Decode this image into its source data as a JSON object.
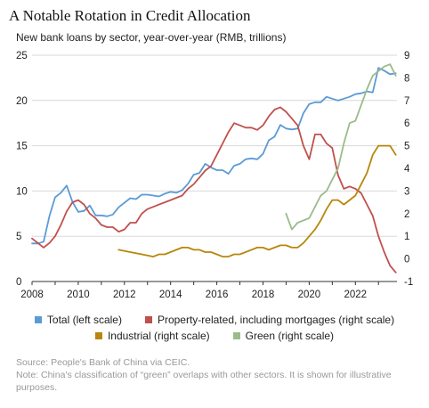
{
  "header": {
    "title": "A Notable Rotation in Credit Allocation",
    "subtitle": "New bank loans by sector, year-over-year (RMB, trillions)"
  },
  "footer": {
    "source": "Source: People's Bank of China via CEIC.",
    "note": "Note: China's classification of “green” overlaps with other sectors. It is shown for illustrative purposes."
  },
  "colors": {
    "total": "#5b9bd5",
    "property": "#c0504d",
    "industrial": "#b8860b",
    "green": "#9bbb8a",
    "grid": "#d9d9d9",
    "axis": "#333333"
  },
  "chart_data": {
    "type": "line",
    "title": "A Notable Rotation in Credit Allocation",
    "subtitle": "New bank loans by sector, year-over-year (RMB, trillions)",
    "x_range": [
      2008,
      2023.8
    ],
    "x_ticks": [
      "2008",
      "2010",
      "2012",
      "2014",
      "2016",
      "2018",
      "2020",
      "2022"
    ],
    "left_axis": {
      "range": [
        0,
        25
      ],
      "ticks": [
        "0",
        "5",
        "10",
        "15",
        "20",
        "25"
      ]
    },
    "right_axis": {
      "range": [
        -1,
        9
      ],
      "ticks": [
        "-1",
        "0",
        "1",
        "2",
        "3",
        "4",
        "5",
        "6",
        "7",
        "8",
        "9"
      ]
    },
    "grid": true,
    "legend_position": "bottom",
    "legend": [
      "Total (left scale)",
      "Property-related, including mortgages (right scale)",
      "Industrial (right scale)",
      "Green (right scale)"
    ],
    "series": [
      {
        "name": "Total (left scale)",
        "axis": "left",
        "points": [
          [
            2008.0,
            4.2
          ],
          [
            2008.25,
            4.2
          ],
          [
            2008.5,
            4.4
          ],
          [
            2008.75,
            7.2
          ],
          [
            2009.0,
            9.3
          ],
          [
            2009.25,
            9.8
          ],
          [
            2009.5,
            10.6
          ],
          [
            2009.75,
            8.8
          ],
          [
            2010.0,
            7.7
          ],
          [
            2010.25,
            7.8
          ],
          [
            2010.5,
            8.4
          ],
          [
            2010.75,
            7.3
          ],
          [
            2011.0,
            7.3
          ],
          [
            2011.25,
            7.2
          ],
          [
            2011.5,
            7.4
          ],
          [
            2011.75,
            8.2
          ],
          [
            2012.0,
            8.7
          ],
          [
            2012.25,
            9.2
          ],
          [
            2012.5,
            9.1
          ],
          [
            2012.75,
            9.6
          ],
          [
            2013.0,
            9.6
          ],
          [
            2013.25,
            9.5
          ],
          [
            2013.5,
            9.4
          ],
          [
            2013.75,
            9.7
          ],
          [
            2014.0,
            9.9
          ],
          [
            2014.25,
            9.8
          ],
          [
            2014.5,
            10.1
          ],
          [
            2014.75,
            10.8
          ],
          [
            2015.0,
            11.8
          ],
          [
            2015.25,
            12.0
          ],
          [
            2015.5,
            13.0
          ],
          [
            2015.75,
            12.6
          ],
          [
            2016.0,
            12.3
          ],
          [
            2016.25,
            12.3
          ],
          [
            2016.5,
            11.9
          ],
          [
            2016.75,
            12.8
          ],
          [
            2017.0,
            13.0
          ],
          [
            2017.25,
            13.5
          ],
          [
            2017.5,
            13.6
          ],
          [
            2017.75,
            13.5
          ],
          [
            2018.0,
            14.1
          ],
          [
            2018.25,
            15.6
          ],
          [
            2018.5,
            16.0
          ],
          [
            2018.75,
            17.3
          ],
          [
            2019.0,
            16.9
          ],
          [
            2019.25,
            16.8
          ],
          [
            2019.5,
            16.9
          ],
          [
            2019.75,
            18.6
          ],
          [
            2020.0,
            19.6
          ],
          [
            2020.25,
            19.8
          ],
          [
            2020.5,
            19.8
          ],
          [
            2020.75,
            20.4
          ],
          [
            2021.0,
            20.2
          ],
          [
            2021.25,
            20.0
          ],
          [
            2021.5,
            20.2
          ],
          [
            2021.75,
            20.4
          ],
          [
            2022.0,
            20.7
          ],
          [
            2022.25,
            20.8
          ],
          [
            2022.5,
            21.0
          ],
          [
            2022.75,
            20.9
          ],
          [
            2023.0,
            23.6
          ],
          [
            2023.25,
            23.3
          ],
          [
            2023.5,
            22.9
          ],
          [
            2023.75,
            23.0
          ]
        ]
      },
      {
        "name": "Property-related, including mortgages (right scale)",
        "axis": "right",
        "points": [
          [
            2008.0,
            0.9
          ],
          [
            2008.25,
            0.7
          ],
          [
            2008.5,
            0.5
          ],
          [
            2008.75,
            0.7
          ],
          [
            2009.0,
            1.0
          ],
          [
            2009.25,
            1.5
          ],
          [
            2009.5,
            2.1
          ],
          [
            2009.75,
            2.5
          ],
          [
            2010.0,
            2.6
          ],
          [
            2010.25,
            2.4
          ],
          [
            2010.5,
            2.0
          ],
          [
            2010.75,
            1.8
          ],
          [
            2011.0,
            1.5
          ],
          [
            2011.25,
            1.4
          ],
          [
            2011.5,
            1.4
          ],
          [
            2011.75,
            1.2
          ],
          [
            2012.0,
            1.3
          ],
          [
            2012.25,
            1.6
          ],
          [
            2012.5,
            1.6
          ],
          [
            2012.75,
            2.0
          ],
          [
            2013.0,
            2.2
          ],
          [
            2013.25,
            2.3
          ],
          [
            2013.5,
            2.4
          ],
          [
            2013.75,
            2.5
          ],
          [
            2014.0,
            2.6
          ],
          [
            2014.25,
            2.7
          ],
          [
            2014.5,
            2.8
          ],
          [
            2014.75,
            3.1
          ],
          [
            2015.0,
            3.3
          ],
          [
            2015.25,
            3.6
          ],
          [
            2015.5,
            3.9
          ],
          [
            2015.75,
            4.1
          ],
          [
            2016.0,
            4.6
          ],
          [
            2016.25,
            5.1
          ],
          [
            2016.5,
            5.6
          ],
          [
            2016.75,
            6.0
          ],
          [
            2017.0,
            5.9
          ],
          [
            2017.25,
            5.8
          ],
          [
            2017.5,
            5.8
          ],
          [
            2017.75,
            5.7
          ],
          [
            2018.0,
            5.9
          ],
          [
            2018.25,
            6.3
          ],
          [
            2018.5,
            6.6
          ],
          [
            2018.75,
            6.7
          ],
          [
            2019.0,
            6.5
          ],
          [
            2019.25,
            6.2
          ],
          [
            2019.5,
            5.9
          ],
          [
            2019.75,
            5.0
          ],
          [
            2020.0,
            4.4
          ],
          [
            2020.25,
            5.5
          ],
          [
            2020.5,
            5.5
          ],
          [
            2020.75,
            5.1
          ],
          [
            2021.0,
            4.9
          ],
          [
            2021.25,
            3.7
          ],
          [
            2021.5,
            3.1
          ],
          [
            2021.75,
            3.2
          ],
          [
            2022.0,
            3.1
          ],
          [
            2022.25,
            2.9
          ],
          [
            2022.5,
            2.4
          ],
          [
            2022.75,
            1.9
          ],
          [
            2023.0,
            1.0
          ],
          [
            2023.25,
            0.3
          ],
          [
            2023.5,
            -0.3
          ],
          [
            2023.75,
            -0.6
          ]
        ]
      },
      {
        "name": "Industrial (right scale)",
        "axis": "right",
        "points": [
          [
            2011.75,
            0.4
          ],
          [
            2012.25,
            0.3
          ],
          [
            2012.75,
            0.2
          ],
          [
            2013.25,
            0.1
          ],
          [
            2013.5,
            0.2
          ],
          [
            2013.75,
            0.2
          ],
          [
            2014.25,
            0.4
          ],
          [
            2014.5,
            0.5
          ],
          [
            2014.75,
            0.5
          ],
          [
            2015.0,
            0.4
          ],
          [
            2015.25,
            0.4
          ],
          [
            2015.5,
            0.3
          ],
          [
            2015.75,
            0.3
          ],
          [
            2016.0,
            0.2
          ],
          [
            2016.25,
            0.1
          ],
          [
            2016.5,
            0.1
          ],
          [
            2016.75,
            0.2
          ],
          [
            2017.0,
            0.2
          ],
          [
            2017.25,
            0.3
          ],
          [
            2017.5,
            0.4
          ],
          [
            2017.75,
            0.5
          ],
          [
            2018.0,
            0.5
          ],
          [
            2018.25,
            0.4
          ],
          [
            2018.5,
            0.5
          ],
          [
            2018.75,
            0.6
          ],
          [
            2019.0,
            0.6
          ],
          [
            2019.25,
            0.5
          ],
          [
            2019.5,
            0.5
          ],
          [
            2019.75,
            0.7
          ],
          [
            2020.0,
            1.0
          ],
          [
            2020.25,
            1.3
          ],
          [
            2020.5,
            1.7
          ],
          [
            2020.75,
            2.2
          ],
          [
            2021.0,
            2.6
          ],
          [
            2021.25,
            2.6
          ],
          [
            2021.5,
            2.4
          ],
          [
            2021.75,
            2.6
          ],
          [
            2022.0,
            2.8
          ],
          [
            2022.25,
            3.3
          ],
          [
            2022.5,
            3.8
          ],
          [
            2022.75,
            4.6
          ],
          [
            2023.0,
            5.0
          ],
          [
            2023.25,
            5.0
          ],
          [
            2023.5,
            5.0
          ],
          [
            2023.75,
            4.6
          ]
        ]
      },
      {
        "name": "Green (right scale)",
        "axis": "right",
        "points": [
          [
            2019.0,
            2.0
          ],
          [
            2019.25,
            1.3
          ],
          [
            2019.5,
            1.6
          ],
          [
            2019.75,
            1.7
          ],
          [
            2020.0,
            1.8
          ],
          [
            2020.25,
            2.3
          ],
          [
            2020.5,
            2.8
          ],
          [
            2020.75,
            3.0
          ],
          [
            2021.0,
            3.5
          ],
          [
            2021.25,
            4.0
          ],
          [
            2021.5,
            5.1
          ],
          [
            2021.75,
            6.0
          ],
          [
            2022.0,
            6.1
          ],
          [
            2022.25,
            6.8
          ],
          [
            2022.5,
            7.5
          ],
          [
            2022.75,
            8.1
          ],
          [
            2023.0,
            8.3
          ],
          [
            2023.25,
            8.5
          ],
          [
            2023.5,
            8.6
          ],
          [
            2023.75,
            8.1
          ]
        ]
      }
    ]
  }
}
